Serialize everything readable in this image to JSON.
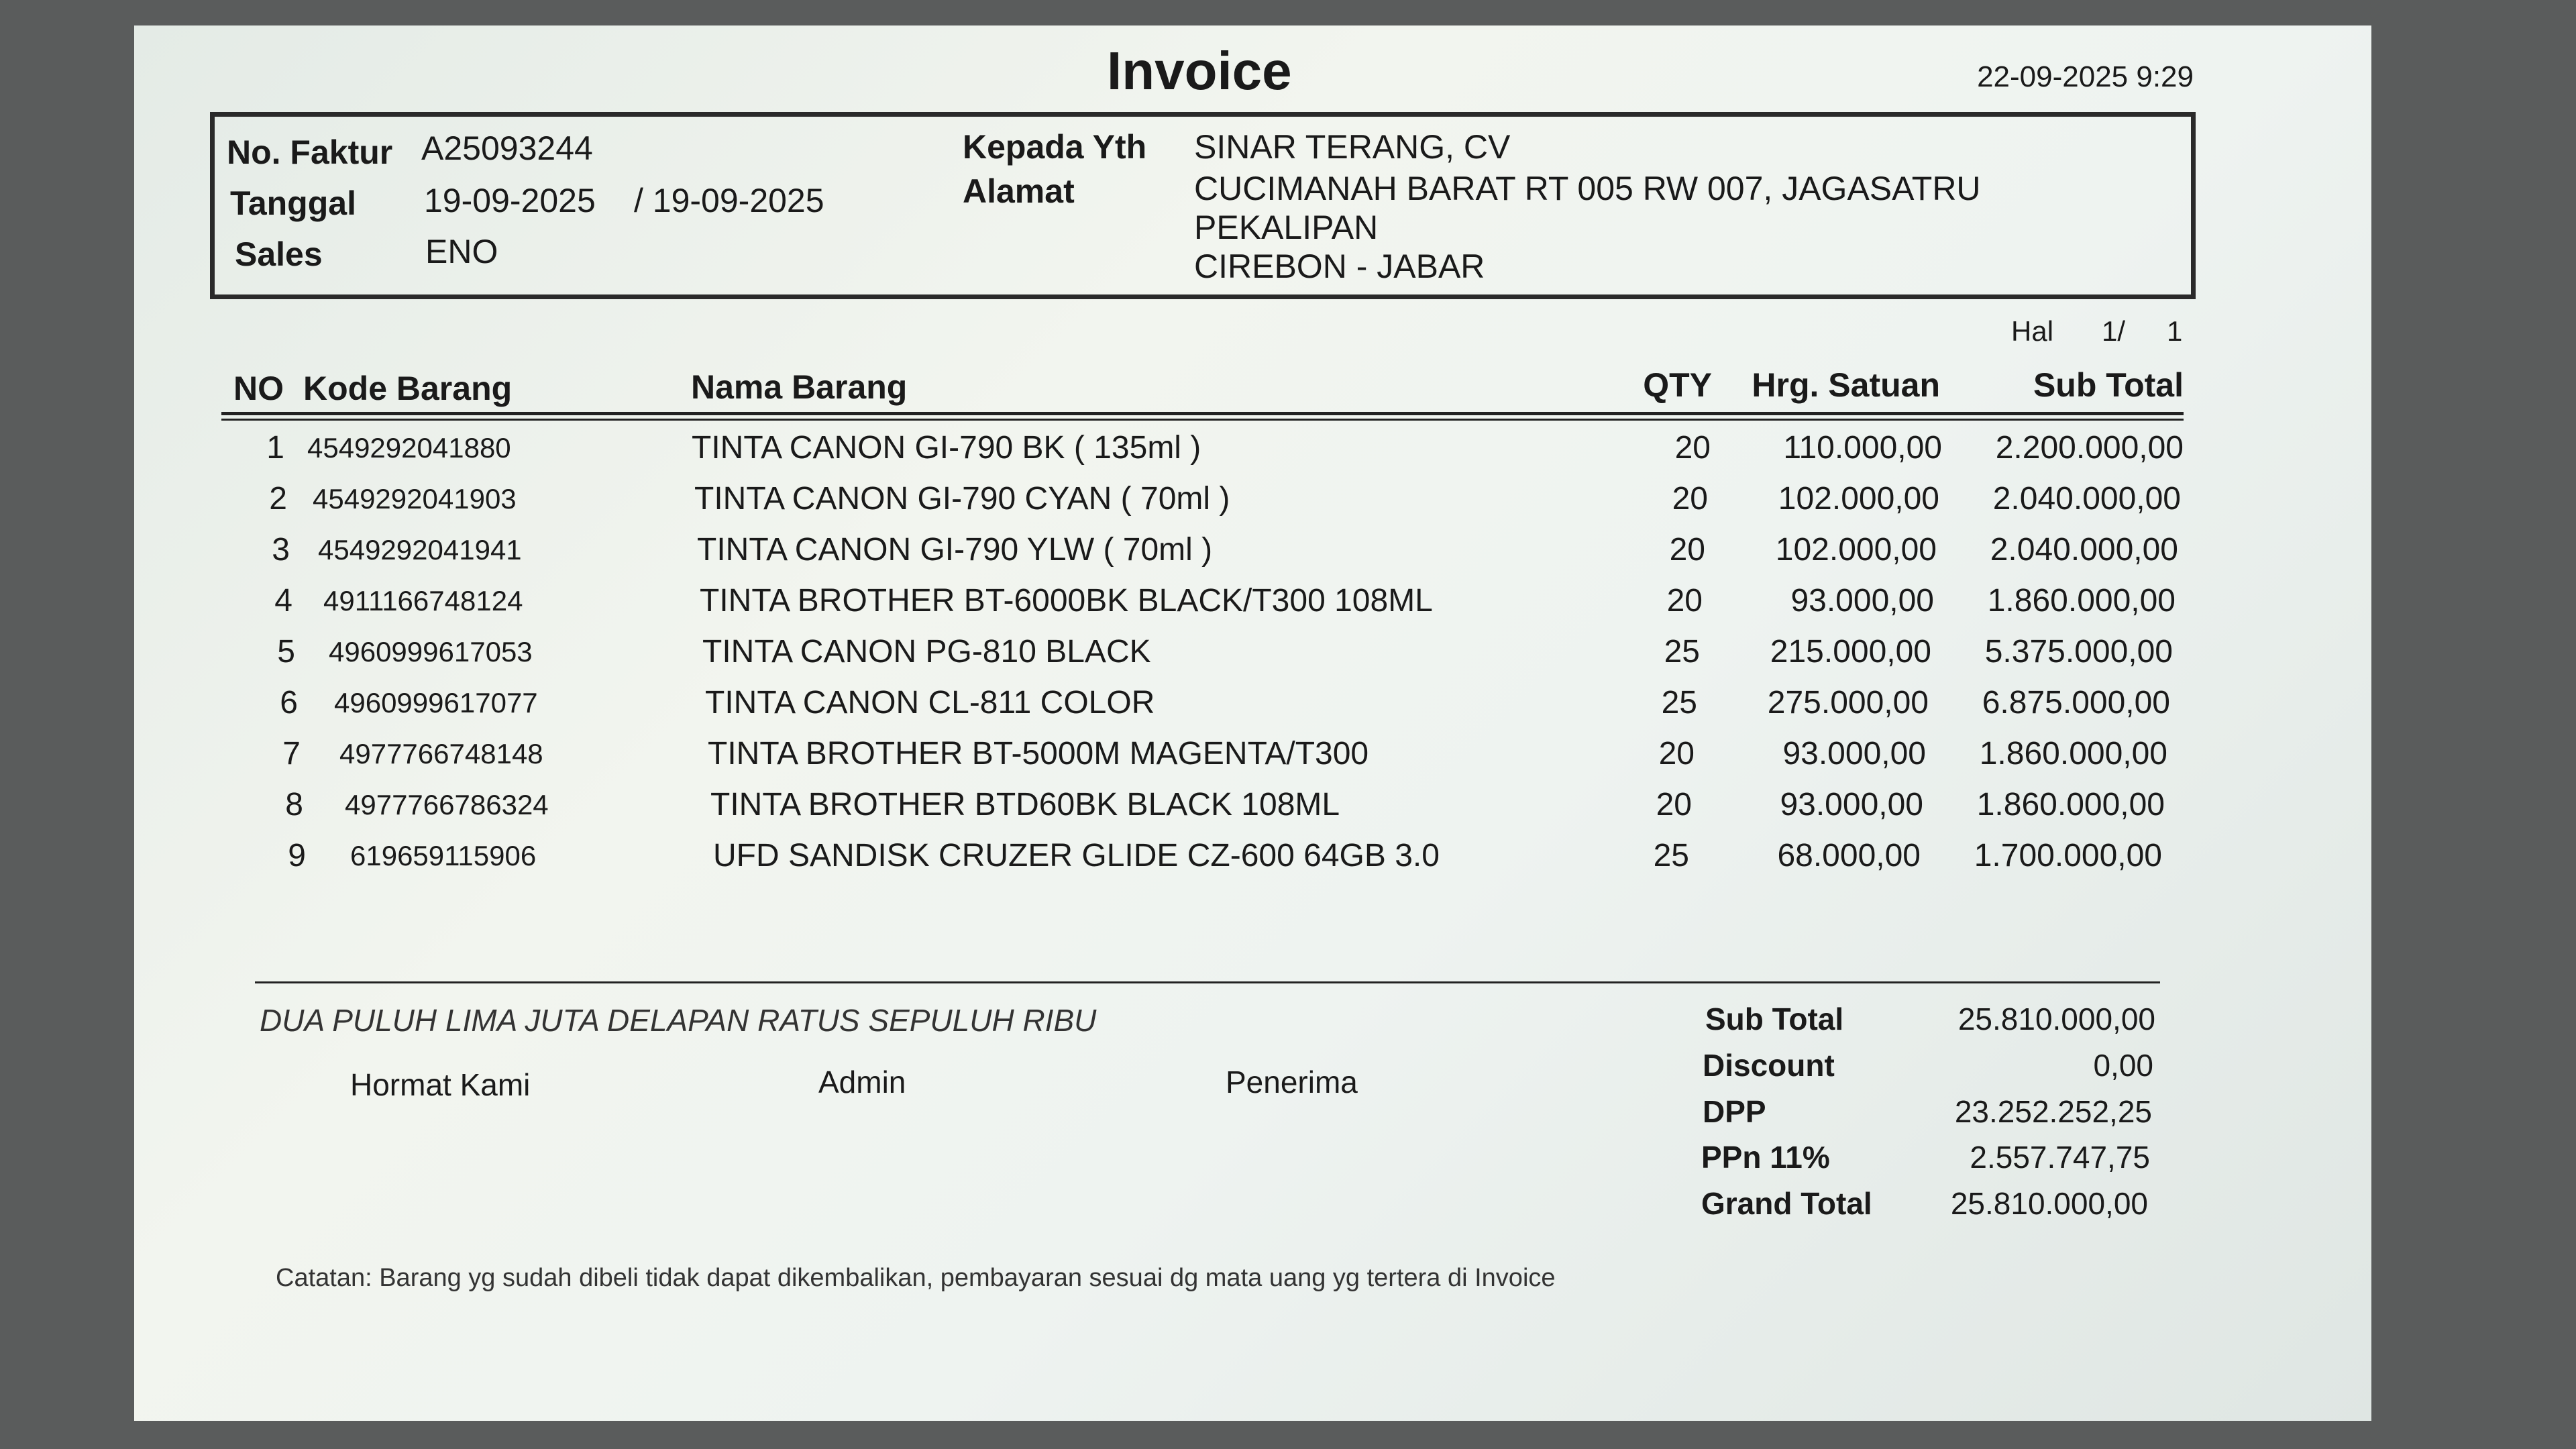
{
  "title": "Invoice",
  "print_datetime": "22-09-2025 9:29",
  "header": {
    "no_faktur_label": "No. Faktur",
    "no_faktur": "A25093244",
    "tanggal_label": "Tanggal",
    "tanggal": "19-09-2025",
    "tanggal2": "/ 19-09-2025",
    "sales_label": "Sales",
    "sales": "ENO",
    "kepada_label": "Kepada Yth",
    "kepada": "SINAR TERANG, CV",
    "alamat_label": "Alamat",
    "alamat_line1": "CUCIMANAH BARAT RT 005 RW 007, JAGASATRU",
    "alamat_line2": "PEKALIPAN",
    "alamat_line3": "CIREBON - JABAR"
  },
  "page": {
    "label": "Hal",
    "current": "1/",
    "total": "1"
  },
  "columns": {
    "no": "NO",
    "kode": "Kode Barang",
    "nama": "Nama Barang",
    "qty": "QTY",
    "harga": "Hrg. Satuan",
    "subtotal": "Sub Total"
  },
  "items": [
    {
      "no": "1",
      "kode": "4549292041880",
      "nama": "TINTA CANON GI-790 BK ( 135ml )",
      "qty": "20",
      "harga": "110.000,00",
      "subtotal": "2.200.000,00"
    },
    {
      "no": "2",
      "kode": "4549292041903",
      "nama": "TINTA CANON GI-790 CYAN ( 70ml )",
      "qty": "20",
      "harga": "102.000,00",
      "subtotal": "2.040.000,00"
    },
    {
      "no": "3",
      "kode": "4549292041941",
      "nama": "TINTA CANON GI-790 YLW ( 70ml )",
      "qty": "20",
      "harga": "102.000,00",
      "subtotal": "2.040.000,00"
    },
    {
      "no": "4",
      "kode": "4911166748124",
      "nama": "TINTA BROTHER BT-6000BK BLACK/T300 108ML",
      "qty": "20",
      "harga": "93.000,00",
      "subtotal": "1.860.000,00"
    },
    {
      "no": "5",
      "kode": "4960999617053",
      "nama": "TINTA CANON PG-810 BLACK",
      "qty": "25",
      "harga": "215.000,00",
      "subtotal": "5.375.000,00"
    },
    {
      "no": "6",
      "kode": "4960999617077",
      "nama": "TINTA CANON CL-811 COLOR",
      "qty": "25",
      "harga": "275.000,00",
      "subtotal": "6.875.000,00"
    },
    {
      "no": "7",
      "kode": "4977766748148",
      "nama": "TINTA BROTHER BT-5000M MAGENTA/T300",
      "qty": "20",
      "harga": "93.000,00",
      "subtotal": "1.860.000,00"
    },
    {
      "no": "8",
      "kode": "4977766786324",
      "nama": "TINTA BROTHER BTD60BK BLACK 108ML",
      "qty": "20",
      "harga": "93.000,00",
      "subtotal": "1.860.000,00"
    },
    {
      "no": "9",
      "kode": "619659115906",
      "nama": "UFD SANDISK CRUZER GLIDE CZ-600 64GB 3.0",
      "qty": "25",
      "harga": "68.000,00",
      "subtotal": "1.700.000,00"
    }
  ],
  "terbilang": "DUA PULUH LIMA JUTA DELAPAN RATUS SEPULUH RIBU",
  "signatures": {
    "hormat": "Hormat Kami",
    "admin": "Admin",
    "penerima": "Penerima"
  },
  "totals": {
    "subtotal_label": "Sub Total",
    "subtotal": "25.810.000,00",
    "discount_label": "Discount",
    "discount": "0,00",
    "dpp_label": "DPP",
    "dpp": "23.252.252,25",
    "ppn_label": "PPn 11%",
    "ppn": "2.557.747,75",
    "grand_label": "Grand Total",
    "grand": "25.810.000,00"
  },
  "catatan": "Catatan: Barang yg sudah dibeli tidak dapat dikembalikan, pembayaran sesuai dg mata uang yg tertera di Invoice"
}
